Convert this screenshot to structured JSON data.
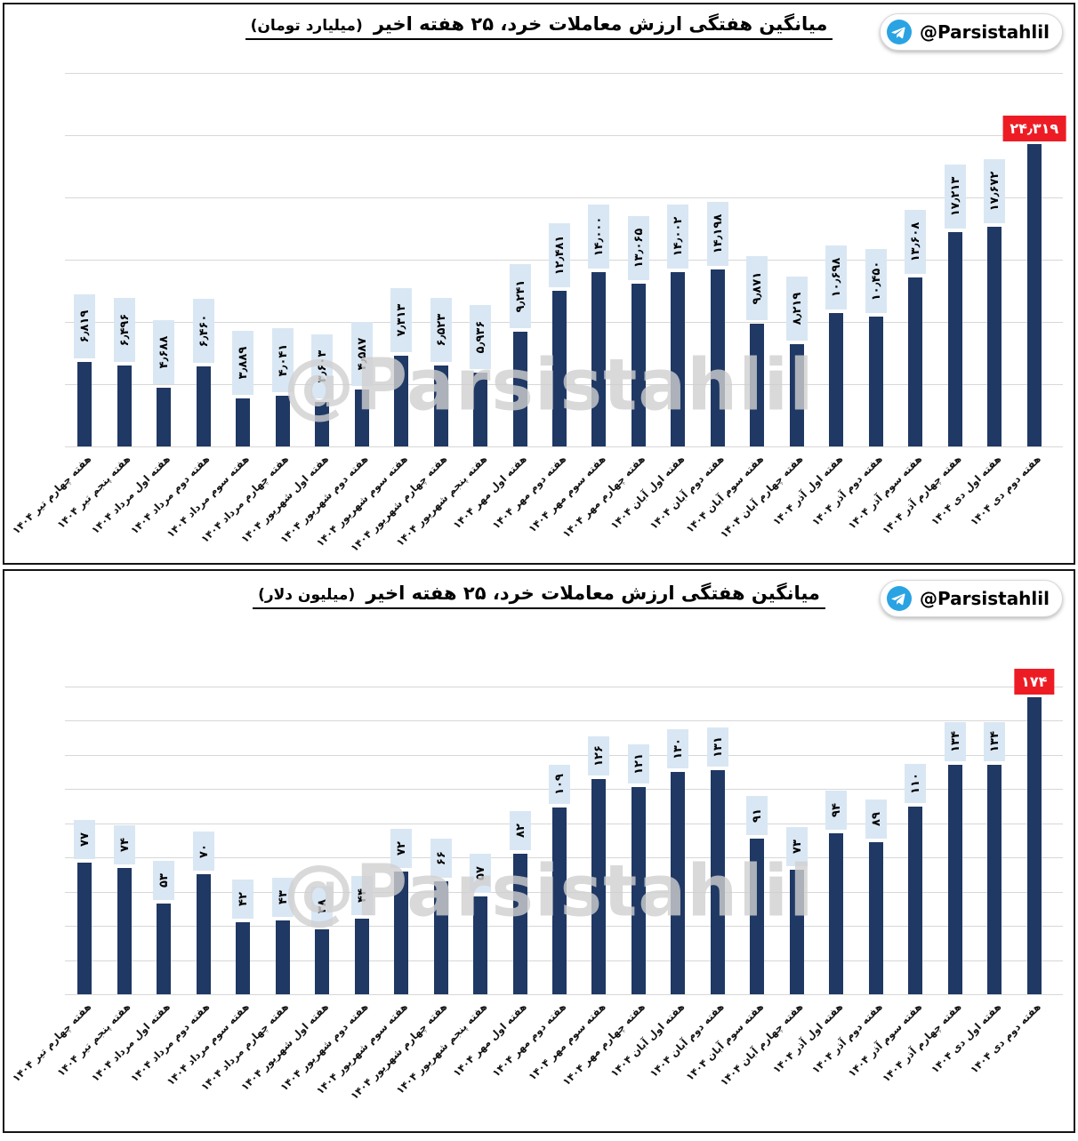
{
  "source_badge": {
    "handle": "@Parsistahlil",
    "icon": "telegram-icon"
  },
  "watermark_text": "@Parsistahlil",
  "colors": {
    "bar": "#1f3864",
    "value_label_bg": "#d9e7f4",
    "highlight_bg": "#ed1c24",
    "highlight_text": "#ffffff",
    "gridline": "#d7d7d7",
    "telegram_blue": "#2aa3e3"
  },
  "chart_data": [
    {
      "type": "bar",
      "title": "میانگین هفتگی ارزش معاملات خرد، ۲۵ هفته اخیر (میلیارد تومان)",
      "title_main": "میانگین هفتگی ارزش معاملات خرد، ۲۵ هفته اخیر",
      "title_unit": "(میلیارد تومان)",
      "xlabel": "",
      "ylabel": "",
      "ylim": [
        0,
        30000
      ],
      "grid_step": 5000,
      "legend_position": "none",
      "highlight_index": 24,
      "categories": [
        "هفته چهارم تیر ۱۴۰۴",
        "هفته پنجم تیر ۱۴۰۴",
        "هفته اول مرداد ۱۴۰۴",
        "هفته دوم مرداد ۱۴۰۴",
        "هفته سوم مرداد ۱۴۰۴",
        "هفته چهارم مرداد ۱۴۰۴",
        "هفته اول شهریور ۱۴۰۴",
        "هفته دوم شهریور ۱۴۰۴",
        "هفته سوم شهریور ۱۴۰۴",
        "هفته چهارم شهریور ۱۴۰۴",
        "هفته پنجم شهریور ۱۴۰۴",
        "هفته اول مهر ۱۴۰۴",
        "هفته دوم مهر ۱۴۰۴",
        "هفته سوم مهر ۱۴۰۴",
        "هفته چهارم مهر ۱۴۰۴",
        "هفته اول آبان ۱۴۰۴",
        "هفته دوم آبان ۱۴۰۴",
        "هفته سوم آبان ۱۴۰۴",
        "هفته چهارم آبان ۱۴۰۴",
        "هفته اول آذر ۱۴۰۴",
        "هفته دوم آذر ۱۴۰۴",
        "هفته سوم آذر ۱۴۰۴",
        "هفته چهارم آذر ۱۴۰۴",
        "هفته اول دی ۱۴۰۴",
        "هفته دوم دی ۱۴۰۴"
      ],
      "values": [
        6819,
        6496,
        4688,
        6460,
        3889,
        4041,
        3603,
        4587,
        7313,
        6523,
        5936,
        9241,
        12481,
        14000,
        13065,
        14002,
        14198,
        9871,
        8219,
        10698,
        10450,
        13608,
        17213,
        17672,
        24319
      ],
      "value_labels": [
        "۶٫۸۱۹",
        "۶٫۴۹۶",
        "۴٫۶۸۸",
        "۶٫۴۶۰",
        "۳٫۸۸۹",
        "۴٫۰۴۱",
        "۳٫۶۰۳",
        "۴٫۵۸۷",
        "۷٫۳۱۳",
        "۶٫۵۲۳",
        "۵٫۹۳۶",
        "۹٫۲۴۱",
        "۱۲٫۴۸۱",
        "۱۴٫۰۰۰",
        "۱۳٫۰۶۵",
        "۱۴٫۰۰۲",
        "۱۴٫۱۹۸",
        "۹٫۸۷۱",
        "۸٫۲۱۹",
        "۱۰٫۶۹۸",
        "۱۰٫۴۵۰",
        "۱۳٫۶۰۸",
        "۱۷٫۲۱۳",
        "۱۷٫۶۷۲",
        "۲۴٫۳۱۹"
      ]
    },
    {
      "type": "bar",
      "title": "میانگین هفتگی ارزش معاملات خرد، ۲۵ هفته اخیر (میلیون دلار)",
      "title_main": "میانگین هفتگی ارزش معاملات خرد، ۲۵ هفته اخیر",
      "title_unit": "(میلیون دلار)",
      "xlabel": "",
      "ylabel": "",
      "ylim": [
        0,
        180
      ],
      "grid_step": 20,
      "legend_position": "none",
      "highlight_index": 24,
      "categories": [
        "هفته چهارم تیر ۱۴۰۴",
        "هفته پنجم تیر ۱۴۰۴",
        "هفته اول مرداد ۱۴۰۴",
        "هفته دوم مرداد ۱۴۰۴",
        "هفته سوم مرداد ۱۴۰۴",
        "هفته چهارم مرداد ۱۴۰۴",
        "هفته اول شهریور ۱۴۰۴",
        "هفته دوم شهریور ۱۴۰۴",
        "هفته سوم شهریور ۱۴۰۴",
        "هفته چهارم شهریور ۱۴۰۴",
        "هفته پنجم شهریور ۱۴۰۴",
        "هفته اول مهر ۱۴۰۴",
        "هفته دوم مهر ۱۴۰۴",
        "هفته سوم مهر ۱۴۰۴",
        "هفته چهارم مهر ۱۴۰۴",
        "هفته اول آبان ۱۴۰۴",
        "هفته دوم آبان ۱۴۰۴",
        "هفته سوم آبان ۱۴۰۴",
        "هفته چهارم آبان ۱۴۰۴",
        "هفته اول آذر ۱۴۰۴",
        "هفته دوم آذر ۱۴۰۴",
        "هفته سوم آذر ۱۴۰۴",
        "هفته چهارم آذر ۱۴۰۴",
        "هفته اول دی ۱۴۰۴",
        "هفته دوم دی ۱۴۰۴"
      ],
      "values": [
        77,
        74,
        53,
        70,
        42,
        43,
        38,
        44,
        72,
        66,
        57,
        82,
        109,
        126,
        121,
        130,
        131,
        91,
        73,
        94,
        89,
        110,
        134,
        134,
        174
      ],
      "value_labels": [
        "۷۷",
        "۷۴",
        "۵۳",
        "۷۰",
        "۴۲",
        "۴۳",
        "۳۸",
        "۴۴",
        "۷۲",
        "۶۶",
        "۵۷",
        "۸۲",
        "۱۰۹",
        "۱۲۶",
        "۱۲۱",
        "۱۳۰",
        "۱۳۱",
        "۹۱",
        "۷۳",
        "۹۴",
        "۸۹",
        "۱۱۰",
        "۱۳۴",
        "۱۳۴",
        "۱۷۴"
      ]
    }
  ]
}
